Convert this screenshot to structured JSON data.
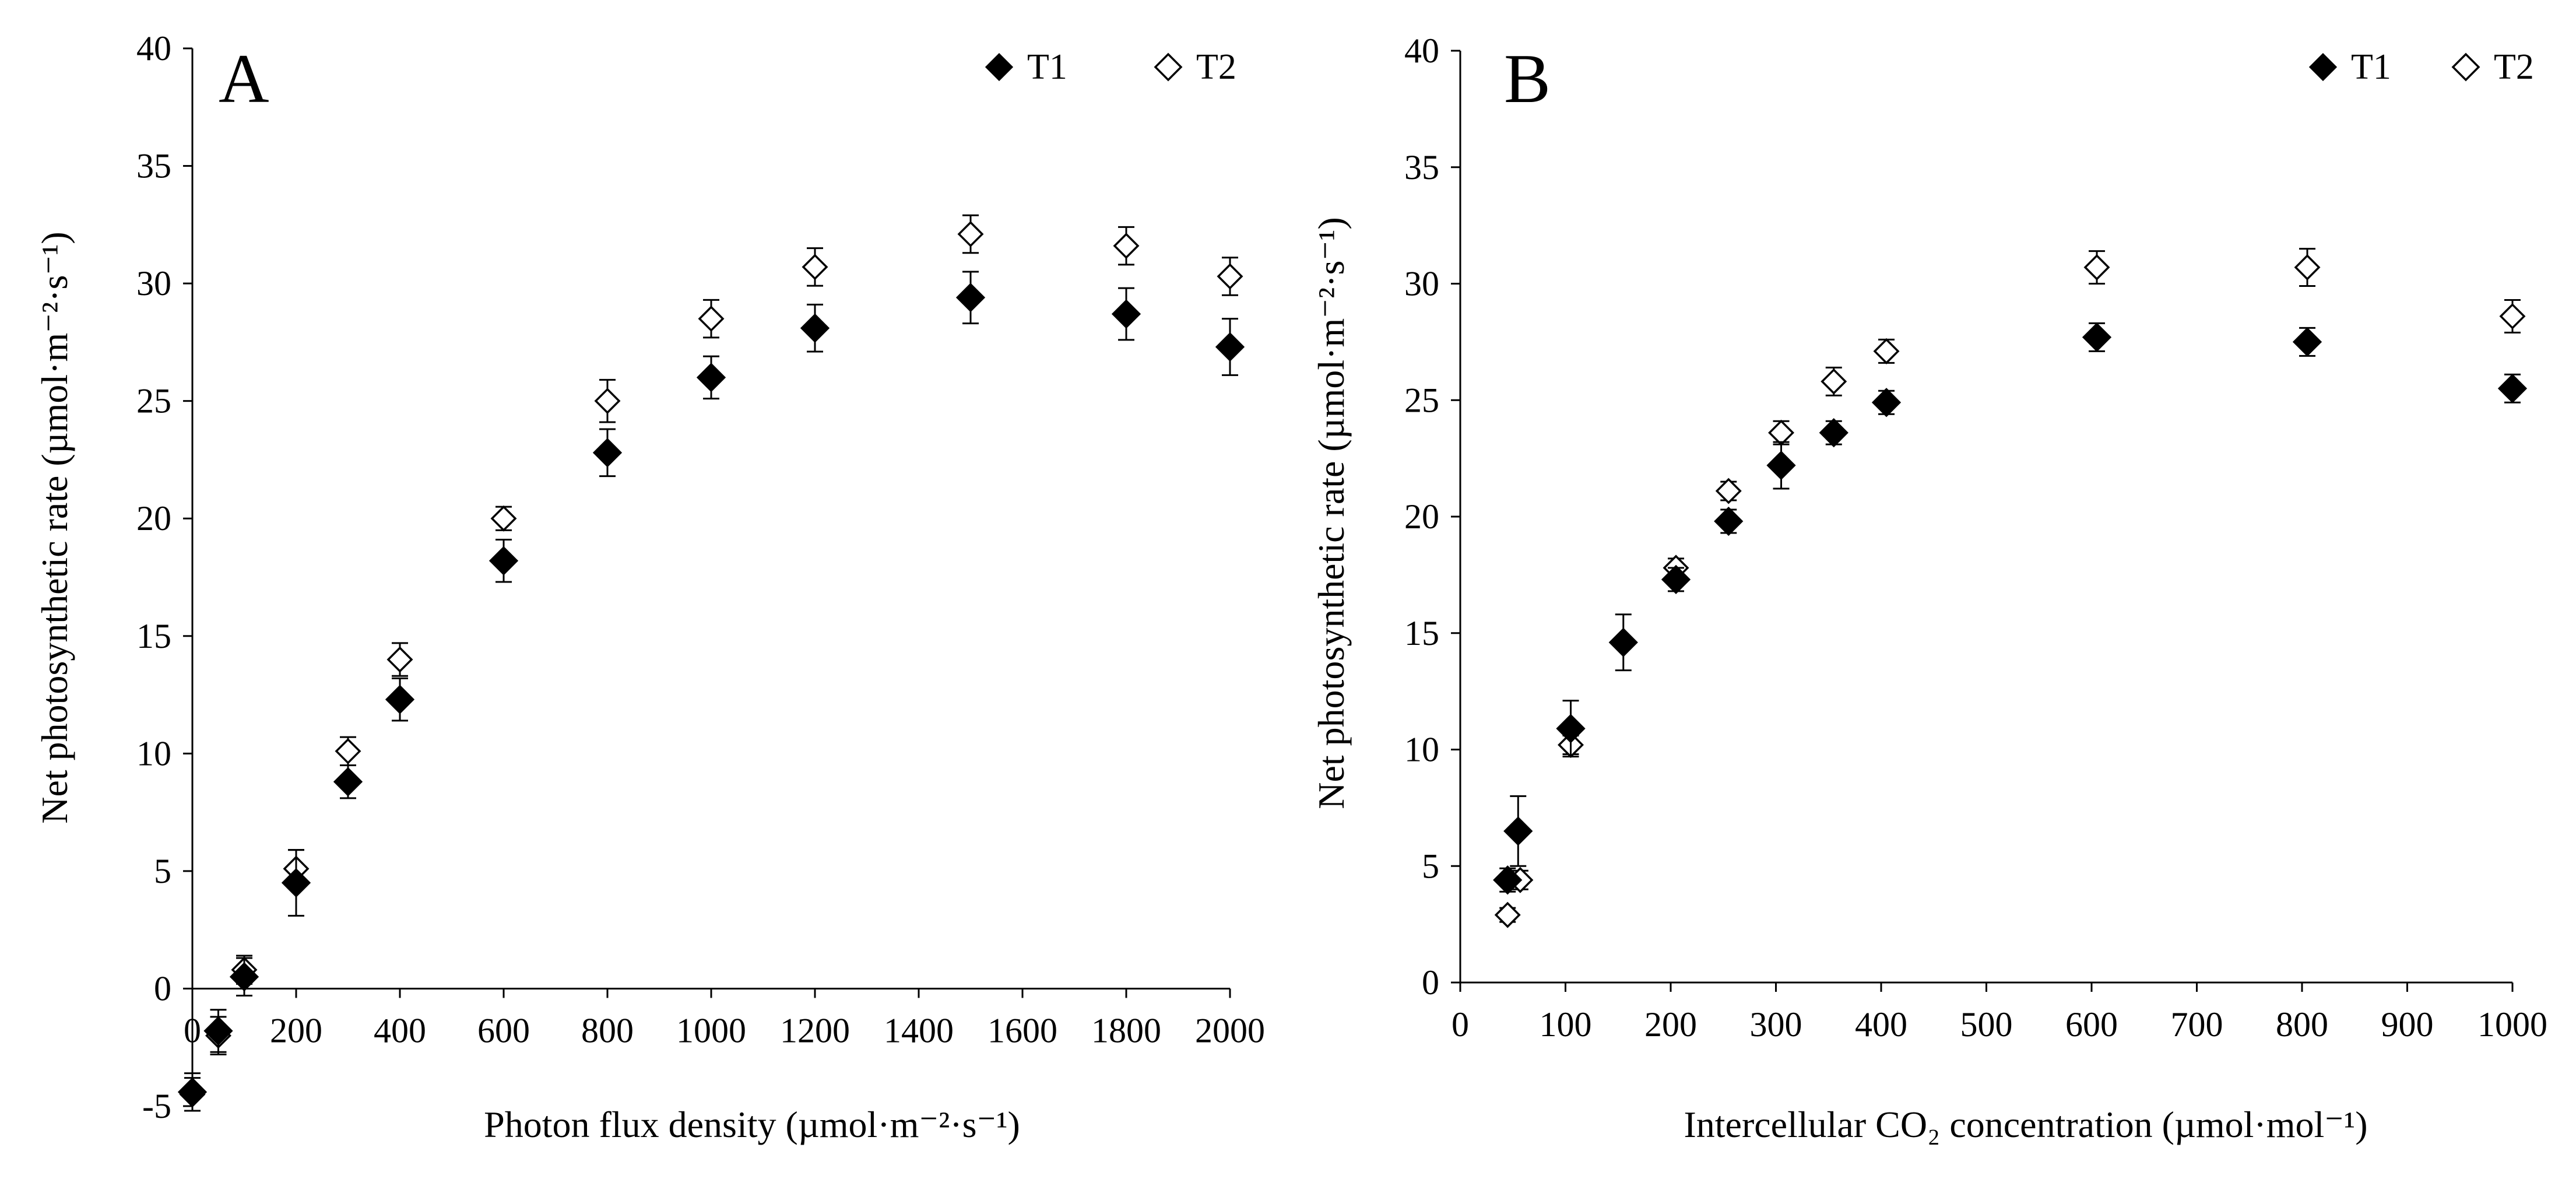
{
  "chart_data": [
    {
      "type": "scatter",
      "panel_label": "A",
      "title": "",
      "xlabel": "Photon flux density (µmol·m⁻²·s⁻¹)",
      "ylabel": "Net photosynthetic rate (µmol·m⁻²·s⁻¹)",
      "xlim": [
        0,
        2000
      ],
      "ylim": [
        -5,
        40
      ],
      "x_ticks": [
        0,
        200,
        400,
        600,
        800,
        1000,
        1200,
        1400,
        1600,
        1800,
        2000
      ],
      "y_ticks": [
        -5,
        0,
        5,
        10,
        15,
        20,
        25,
        30,
        35,
        40
      ],
      "grid": false,
      "legend_position": "top-right",
      "series": [
        {
          "name": "T1",
          "marker": "filled-diamond",
          "x": [
            0,
            50,
            100,
            200,
            300,
            400,
            600,
            800,
            1000,
            1200,
            1500,
            1800,
            2000
          ],
          "values": [
            -4.4,
            -1.8,
            0.5,
            4.5,
            8.8,
            12.3,
            18.2,
            22.8,
            26.0,
            28.1,
            29.4,
            28.7,
            27.3
          ],
          "errors": [
            0.8,
            0.9,
            0.8,
            1.4,
            0.7,
            0.9,
            0.9,
            1.0,
            0.9,
            1.0,
            1.1,
            1.1,
            1.2
          ]
        },
        {
          "name": "T2",
          "marker": "open-diamond",
          "x": [
            0,
            50,
            100,
            200,
            300,
            400,
            600,
            800,
            1000,
            1200,
            1500,
            1800,
            2000
          ],
          "values": [
            -4.5,
            -2.0,
            0.8,
            5.1,
            10.1,
            14.0,
            20.0,
            25.0,
            28.5,
            30.7,
            32.1,
            31.6,
            30.3
          ],
          "errors": [
            0.7,
            0.8,
            0.6,
            0.8,
            0.6,
            0.7,
            0.5,
            0.9,
            0.8,
            0.8,
            0.8,
            0.8,
            0.8
          ]
        }
      ]
    },
    {
      "type": "scatter",
      "panel_label": "B",
      "title": "",
      "xlabel": "Intercellular CO₂ concentration (µmol·mol⁻¹)",
      "ylabel": "Net photosynthetic rate (µmol·m⁻²·s⁻¹)",
      "xlim": [
        0,
        1000
      ],
      "ylim": [
        0,
        40
      ],
      "x_ticks": [
        0,
        100,
        200,
        300,
        400,
        500,
        600,
        700,
        800,
        900,
        1000
      ],
      "y_ticks": [
        0,
        5,
        10,
        15,
        20,
        25,
        30,
        35,
        40
      ],
      "grid": false,
      "legend_position": "top-right",
      "series": [
        {
          "name": "T1",
          "marker": "filled-diamond",
          "x": [
            45,
            55,
            105,
            155,
            205,
            255,
            305,
            355,
            405,
            605,
            805,
            1000
          ],
          "values": [
            4.4,
            6.5,
            10.9,
            14.6,
            17.3,
            19.8,
            22.2,
            23.6,
            24.9,
            27.7,
            27.5,
            25.5
          ],
          "errors": [
            0.5,
            1.5,
            1.2,
            1.2,
            0.5,
            0.5,
            1.0,
            0.5,
            0.5,
            0.6,
            0.6,
            0.6
          ]
        },
        {
          "name": "T2",
          "marker": "open-diamond",
          "x": [
            45,
            57,
            105,
            205,
            255,
            305,
            355,
            405,
            605,
            805,
            1000
          ],
          "values": [
            2.9,
            4.4,
            10.2,
            17.8,
            21.1,
            23.6,
            25.8,
            27.1,
            30.7,
            30.7,
            28.6
          ],
          "errors": [
            0.3,
            0.4,
            0.4,
            0.4,
            0.4,
            0.5,
            0.6,
            0.5,
            0.7,
            0.8,
            0.7
          ]
        }
      ]
    }
  ]
}
